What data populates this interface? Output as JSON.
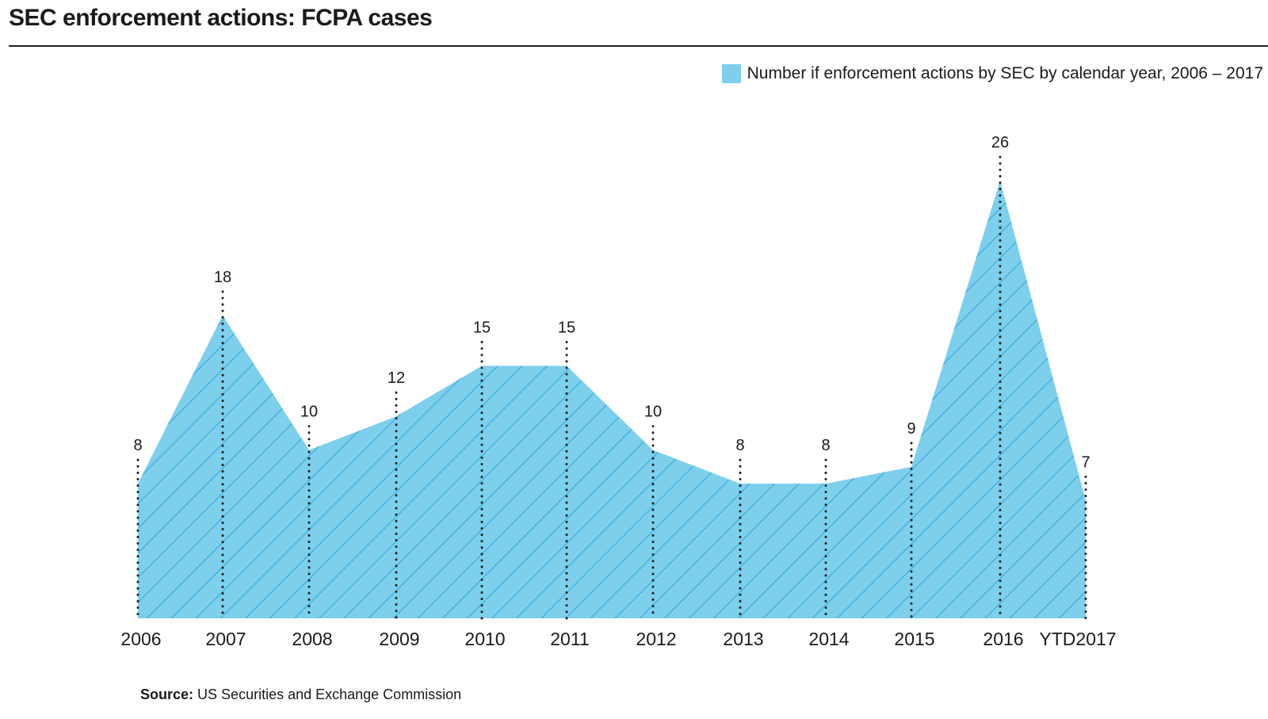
{
  "title": "SEC enforcement actions: FCPA cases",
  "legend": {
    "label": "Number if enforcement actions by SEC by calendar year, 2006 – 2017"
  },
  "colors": {
    "fill": "#7dcfec",
    "hatch": "#1d9bd6",
    "dots": "#222222"
  },
  "source": {
    "label": "Source:",
    "text": "US Securities and Exchange Commission"
  },
  "chart_data": {
    "type": "area",
    "title": "SEC enforcement actions: FCPA cases",
    "categories": [
      "2006",
      "2007",
      "2008",
      "2009",
      "2010",
      "2011",
      "2012",
      "2013",
      "2014",
      "2015",
      "2016",
      "YTD2017"
    ],
    "series": [
      {
        "name": "Number if enforcement actions by SEC by calendar year, 2006 – 2017",
        "values": [
          8,
          18,
          10,
          12,
          15,
          15,
          10,
          8,
          8,
          9,
          26,
          7
        ]
      }
    ],
    "value_labels": [
      "8",
      "18",
      "10",
      "12",
      "15",
      "15",
      "10",
      "8",
      "8",
      "9",
      "26",
      "7"
    ],
    "ylim": [
      0,
      26
    ],
    "xlabel": "",
    "ylabel": "",
    "grid": false,
    "legend_position": "top-right"
  }
}
